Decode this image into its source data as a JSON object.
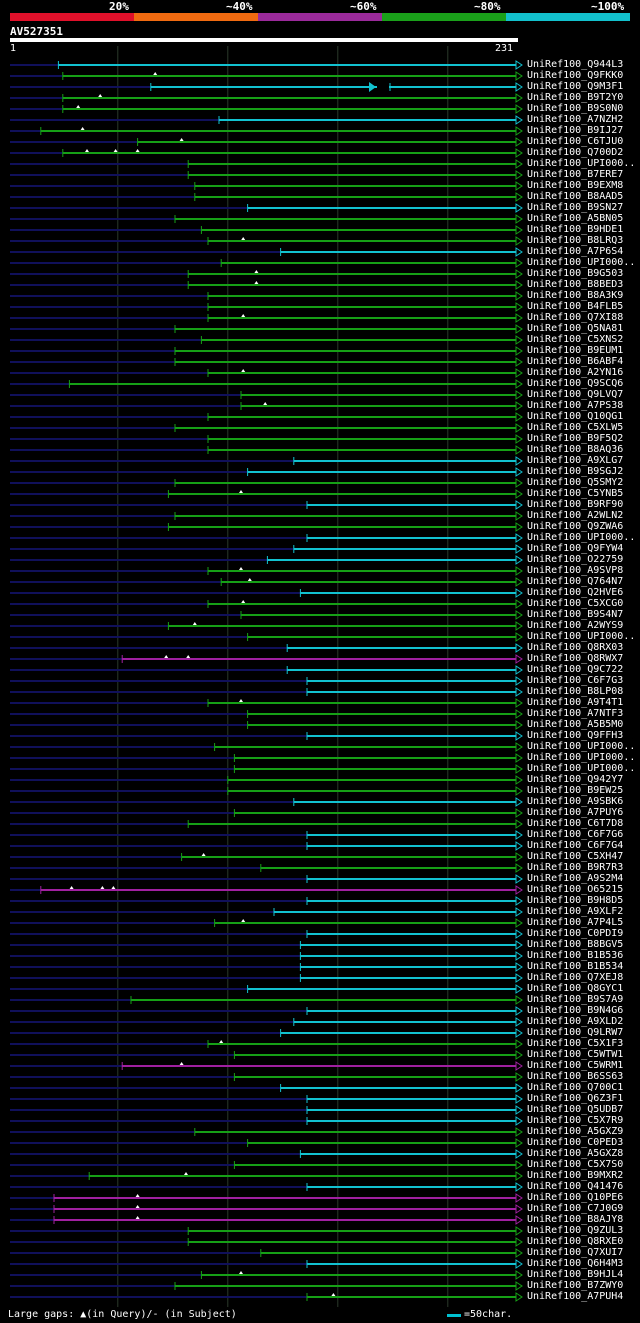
{
  "legend": {
    "labels": [
      "20%",
      "~40%",
      "~60%",
      "~80%",
      "~100%"
    ],
    "colors": [
      "#e0102a",
      "#f06a10",
      "#9b2a9b",
      "#1aa01a",
      "#12c0cc"
    ]
  },
  "query": {
    "title": "AV527351",
    "start": "1",
    "end": "231",
    "length": 231
  },
  "footer": {
    "gaps_text": "Large gaps: ▲(in Query)/- (in Subject)",
    "scale_text": "=50char."
  },
  "colors": {
    "green": "#16a016",
    "cyan": "#12c2d0",
    "purple": "#a020a0",
    "navy": "#10105a",
    "grid": "#2a3a2a"
  },
  "hits": [
    {
      "label": "UniRef100_Q944L3",
      "s": 23,
      "c": "c",
      "m": []
    },
    {
      "label": "UniRef100_Q9FKK0",
      "s": 25,
      "c": "g",
      "m": [
        67
      ]
    },
    {
      "label": "UniRef100_Q9M3F1",
      "s": 65,
      "c": "c",
      "m": []
    },
    {
      "label": "UniRef100_B9T2Y0",
      "s": 25,
      "c": "g",
      "m": [
        42
      ]
    },
    {
      "label": "UniRef100_B9S0N0",
      "s": 25,
      "c": "g",
      "m": [
        32
      ]
    },
    {
      "label": "UniRef100_A7NZH2",
      "s": 96,
      "c": "c",
      "m": []
    },
    {
      "label": "UniRef100_B9IJ27",
      "s": 15,
      "c": "g",
      "m": [
        34
      ]
    },
    {
      "label": "UniRef100_C6TJU0",
      "s": 59,
      "c": "g",
      "m": [
        79
      ]
    },
    {
      "label": "UniRef100_Q700D2",
      "s": 25,
      "c": "g",
      "m": [
        36,
        49,
        59
      ]
    },
    {
      "label": "UniRef100_UPI000..",
      "s": 82,
      "c": "g",
      "m": []
    },
    {
      "label": "UniRef100_B7ERE7",
      "s": 82,
      "c": "g",
      "m": []
    },
    {
      "label": "UniRef100_B9EXM8",
      "s": 85,
      "c": "g",
      "m": []
    },
    {
      "label": "UniRef100_B8AAD5",
      "s": 85,
      "c": "g",
      "m": []
    },
    {
      "label": "UniRef100_B9SN27",
      "s": 109,
      "c": "c",
      "m": []
    },
    {
      "label": "UniRef100_A5BN05",
      "s": 76,
      "c": "g",
      "m": []
    },
    {
      "label": "UniRef100_B9HDE1",
      "s": 88,
      "c": "g",
      "m": []
    },
    {
      "label": "UniRef100_B8LRQ3",
      "s": 91,
      "c": "g",
      "m": [
        107
      ]
    },
    {
      "label": "UniRef100_A7P6S4",
      "s": 124,
      "c": "c",
      "m": []
    },
    {
      "label": "UniRef100_UPI000..",
      "s": 97,
      "c": "g",
      "m": []
    },
    {
      "label": "UniRef100_B9G503",
      "s": 82,
      "c": "g",
      "m": [
        113
      ]
    },
    {
      "label": "UniRef100_B8BED3",
      "s": 82,
      "c": "g",
      "m": [
        113
      ]
    },
    {
      "label": "UniRef100_B8A3K9",
      "s": 91,
      "c": "g",
      "m": []
    },
    {
      "label": "UniRef100_B4FLB5",
      "s": 91,
      "c": "g",
      "m": []
    },
    {
      "label": "UniRef100_Q7XI88",
      "s": 91,
      "c": "g",
      "m": [
        107
      ]
    },
    {
      "label": "UniRef100_Q5NA81",
      "s": 76,
      "c": "g",
      "m": []
    },
    {
      "label": "UniRef100_C5XNS2",
      "s": 88,
      "c": "g",
      "m": []
    },
    {
      "label": "UniRef100_B9EUM1",
      "s": 76,
      "c": "g",
      "m": []
    },
    {
      "label": "UniRef100_B6ABF4",
      "s": 76,
      "c": "g",
      "m": []
    },
    {
      "label": "UniRef100_A2YN16",
      "s": 91,
      "c": "g",
      "m": [
        107
      ]
    },
    {
      "label": "UniRef100_Q9SCQ6",
      "s": 28,
      "c": "g",
      "m": []
    },
    {
      "label": "UniRef100_Q9LVQ7",
      "s": 106,
      "c": "g",
      "m": []
    },
    {
      "label": "UniRef100_A7PS38",
      "s": 106,
      "c": "g",
      "m": [
        117
      ]
    },
    {
      "label": "UniRef100_Q10QG1",
      "s": 91,
      "c": "g",
      "m": []
    },
    {
      "label": "UniRef100_C5XLW5",
      "s": 76,
      "c": "g",
      "m": []
    },
    {
      "label": "UniRef100_B9F5Q2",
      "s": 91,
      "c": "g",
      "m": []
    },
    {
      "label": "UniRef100_B8AQ36",
      "s": 91,
      "c": "g",
      "m": []
    },
    {
      "label": "UniRef100_A9XLG7",
      "s": 130,
      "c": "c",
      "m": []
    },
    {
      "label": "UniRef100_B9SGJ2",
      "s": 109,
      "c": "c",
      "m": []
    },
    {
      "label": "UniRef100_Q5SMY2",
      "s": 76,
      "c": "g",
      "m": []
    },
    {
      "label": "UniRef100_C5YNB5",
      "s": 73,
      "c": "g",
      "m": [
        106
      ]
    },
    {
      "label": "UniRef100_B9RF90",
      "s": 136,
      "c": "c",
      "m": []
    },
    {
      "label": "UniRef100_A2WLN2",
      "s": 76,
      "c": "g",
      "m": []
    },
    {
      "label": "UniRef100_Q9ZWA6",
      "s": 73,
      "c": "g",
      "m": []
    },
    {
      "label": "UniRef100_UPI000..",
      "s": 136,
      "c": "c",
      "m": []
    },
    {
      "label": "UniRef100_Q9FYW4",
      "s": 130,
      "c": "c",
      "m": []
    },
    {
      "label": "UniRef100_O22759",
      "s": 118,
      "c": "c",
      "m": []
    },
    {
      "label": "UniRef100_A9SVP8",
      "s": 91,
      "c": "g",
      "m": [
        106
      ]
    },
    {
      "label": "UniRef100_Q764N7",
      "s": 97,
      "c": "g",
      "m": [
        110
      ]
    },
    {
      "label": "UniRef100_Q2HVE6",
      "s": 133,
      "c": "c",
      "m": []
    },
    {
      "label": "UniRef100_C5XCG0",
      "s": 91,
      "c": "g",
      "m": [
        107
      ]
    },
    {
      "label": "UniRef100_B9S4N7",
      "s": 106,
      "c": "g",
      "m": []
    },
    {
      "label": "UniRef100_A2WYS9",
      "s": 73,
      "c": "g",
      "m": [
        85
      ]
    },
    {
      "label": "UniRef100_UPI000..",
      "s": 109,
      "c": "g",
      "m": []
    },
    {
      "label": "UniRef100_Q8RX03",
      "s": 127,
      "c": "c",
      "m": []
    },
    {
      "label": "UniRef100_Q8RWX7",
      "s": 52,
      "c": "p",
      "m": [
        72,
        82
      ]
    },
    {
      "label": "UniRef100_Q9C722",
      "s": 127,
      "c": "c",
      "m": []
    },
    {
      "label": "UniRef100_C6F7G3",
      "s": 136,
      "c": "c",
      "m": []
    },
    {
      "label": "UniRef100_B8LP08",
      "s": 136,
      "c": "c",
      "m": []
    },
    {
      "label": "UniRef100_A9T4T1",
      "s": 91,
      "c": "g",
      "m": [
        106
      ]
    },
    {
      "label": "UniRef100_A7NTF3",
      "s": 109,
      "c": "g",
      "m": []
    },
    {
      "label": "UniRef100_A5B5M0",
      "s": 109,
      "c": "g",
      "m": []
    },
    {
      "label": "UniRef100_Q9FFH3",
      "s": 136,
      "c": "c",
      "m": []
    },
    {
      "label": "UniRef100_UPI000..",
      "s": 94,
      "c": "g",
      "m": []
    },
    {
      "label": "UniRef100_UPI000..",
      "s": 103,
      "c": "g",
      "m": []
    },
    {
      "label": "UniRef100_UPI000..",
      "s": 103,
      "c": "g",
      "m": []
    },
    {
      "label": "UniRef100_Q942Y7",
      "s": 100,
      "c": "g",
      "m": []
    },
    {
      "label": "UniRef100_B9EW25",
      "s": 100,
      "c": "g",
      "m": []
    },
    {
      "label": "UniRef100_A9SBK6",
      "s": 130,
      "c": "c",
      "m": []
    },
    {
      "label": "UniRef100_A7PUY6",
      "s": 103,
      "c": "g",
      "m": []
    },
    {
      "label": "UniRef100_C6T7D8",
      "s": 82,
      "c": "g",
      "m": []
    },
    {
      "label": "UniRef100_C6F7G6",
      "s": 136,
      "c": "c",
      "m": []
    },
    {
      "label": "UniRef100_C6F7G4",
      "s": 136,
      "c": "c",
      "m": []
    },
    {
      "label": "UniRef100_C5XH47",
      "s": 79,
      "c": "g",
      "m": [
        89
      ]
    },
    {
      "label": "UniRef100_B9R7R3",
      "s": 115,
      "c": "g",
      "m": []
    },
    {
      "label": "UniRef100_A9S2M4",
      "s": 136,
      "c": "c",
      "m": []
    },
    {
      "label": "UniRef100_O65215",
      "s": 15,
      "c": "p",
      "m": [
        29,
        43,
        48
      ]
    },
    {
      "label": "UniRef100_B9H8D5",
      "s": 136,
      "c": "c",
      "m": []
    },
    {
      "label": "UniRef100_A9XLF2",
      "s": 121,
      "c": "c",
      "m": []
    },
    {
      "label": "UniRef100_A7P4L5",
      "s": 94,
      "c": "g",
      "m": [
        107
      ]
    },
    {
      "label": "UniRef100_C0PDI9",
      "s": 136,
      "c": "c",
      "m": []
    },
    {
      "label": "UniRef100_B8BGV5",
      "s": 133,
      "c": "c",
      "m": []
    },
    {
      "label": "UniRef100_B1B536",
      "s": 133,
      "c": "c",
      "m": []
    },
    {
      "label": "UniRef100_B1B534",
      "s": 133,
      "c": "c",
      "m": []
    },
    {
      "label": "UniRef100_Q7XEJ8",
      "s": 133,
      "c": "c",
      "m": []
    },
    {
      "label": "UniRef100_Q8GYC1",
      "s": 109,
      "c": "c",
      "m": []
    },
    {
      "label": "UniRef100_B9S7A9",
      "s": 56,
      "c": "g",
      "m": []
    },
    {
      "label": "UniRef100_B9N4G6",
      "s": 136,
      "c": "c",
      "m": []
    },
    {
      "label": "UniRef100_A9XLD2",
      "s": 130,
      "c": "c",
      "m": []
    },
    {
      "label": "UniRef100_Q9LRW7",
      "s": 124,
      "c": "c",
      "m": []
    },
    {
      "label": "UniRef100_C5X1F3",
      "s": 91,
      "c": "g",
      "m": [
        97
      ]
    },
    {
      "label": "UniRef100_C5WTW1",
      "s": 103,
      "c": "g",
      "m": []
    },
    {
      "label": "UniRef100_C5WRM1",
      "s": 52,
      "c": "p",
      "m": [
        79
      ]
    },
    {
      "label": "UniRef100_B6SS63",
      "s": 103,
      "c": "g",
      "m": []
    },
    {
      "label": "UniRef100_Q700C1",
      "s": 124,
      "c": "c",
      "m": []
    },
    {
      "label": "UniRef100_Q6Z3F1",
      "s": 136,
      "c": "c",
      "m": []
    },
    {
      "label": "UniRef100_Q5UDB7",
      "s": 136,
      "c": "c",
      "m": []
    },
    {
      "label": "UniRef100_C5X7R9",
      "s": 136,
      "c": "c",
      "m": []
    },
    {
      "label": "UniRef100_A5GXZ9",
      "s": 85,
      "c": "g",
      "m": []
    },
    {
      "label": "UniRef100_C0PED3",
      "s": 109,
      "c": "g",
      "m": []
    },
    {
      "label": "UniRef100_A5GXZ8",
      "s": 133,
      "c": "c",
      "m": []
    },
    {
      "label": "UniRef100_C5X7S0",
      "s": 103,
      "c": "g",
      "m": []
    },
    {
      "label": "UniRef100_B9MXR2",
      "s": 37,
      "c": "g",
      "m": [
        81
      ]
    },
    {
      "label": "UniRef100_Q41476",
      "s": 136,
      "c": "c",
      "m": []
    },
    {
      "label": "UniRef100_Q10PE6",
      "s": 21,
      "c": "p",
      "m": [
        59
      ]
    },
    {
      "label": "UniRef100_C7J0G9",
      "s": 21,
      "c": "p",
      "m": [
        59
      ]
    },
    {
      "label": "UniRef100_B8AJY8",
      "s": 21,
      "c": "p",
      "m": [
        59
      ]
    },
    {
      "label": "UniRef100_Q9ZUL3",
      "s": 82,
      "c": "g",
      "m": []
    },
    {
      "label": "UniRef100_Q8RXE0",
      "s": 82,
      "c": "g",
      "m": []
    },
    {
      "label": "UniRef100_Q7XUI7",
      "s": 115,
      "c": "g",
      "m": []
    },
    {
      "label": "UniRef100_Q6H4M3",
      "s": 136,
      "c": "c",
      "m": []
    },
    {
      "label": "UniRef100_B9HJL4",
      "s": 88,
      "c": "g",
      "m": [
        106
      ]
    },
    {
      "label": "UniRef100_B7ZWY0",
      "s": 76,
      "c": "g",
      "m": []
    },
    {
      "label": "UniRef100_A7PUH4",
      "s": 136,
      "c": "g",
      "m": [
        148
      ]
    }
  ]
}
